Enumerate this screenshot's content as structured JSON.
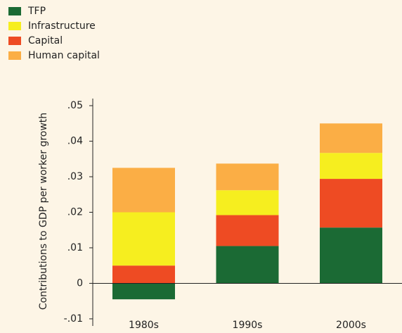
{
  "chart_data": {
    "type": "stacked_bar",
    "y_label": "Contributions to GDP per worker growth",
    "categories": [
      "1980s",
      "1990s",
      "2000s"
    ],
    "series": [
      {
        "name": "TFP",
        "color": "#1b6a34",
        "values": [
          -0.0045,
          0.0105,
          0.0157
        ]
      },
      {
        "name": "Infrastructure",
        "color": "#f6ee1f",
        "values": [
          0.015,
          0.007,
          0.0073
        ]
      },
      {
        "name": "Capital",
        "color": "#ee4b23",
        "values": [
          0.005,
          0.0087,
          0.0137
        ]
      },
      {
        "name": "Human capital",
        "color": "#fbae45",
        "values": [
          0.0125,
          0.0075,
          0.0083
        ]
      }
    ],
    "stack_order": [
      "TFP",
      "Capital",
      "Infrastructure",
      "Human capital"
    ],
    "ylim": [
      -0.012,
      0.052
    ],
    "yticks": [
      {
        "value": -0.01,
        "label": "-.01"
      },
      0,
      {
        "value": 0.01,
        "label": ".01"
      },
      {
        "value": 0.02,
        "label": ".02"
      },
      {
        "value": 0.03,
        "label": ".03"
      },
      {
        "value": 0.04,
        "label": ".04"
      },
      {
        "value": 0.05,
        "label": ".05"
      }
    ],
    "legend": "top-left"
  }
}
